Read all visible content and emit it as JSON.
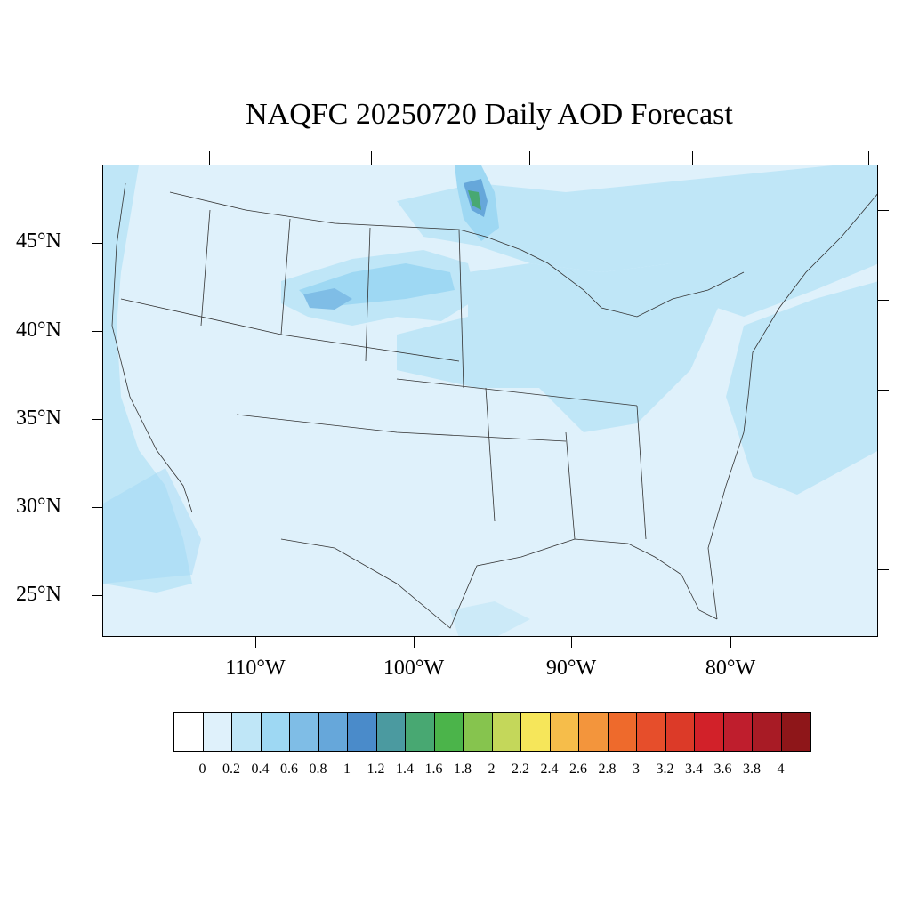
{
  "title": "NAQFC 20250720 Daily AOD Forecast",
  "map": {
    "projection": "Lambert conformal (CONUS)",
    "variable": "Aerosol optical depth",
    "background_level_color": "#dff1fb",
    "lat_labels": [
      "45°N",
      "40°N",
      "35°N",
      "30°N",
      "25°N"
    ],
    "lon_labels": [
      "110°W",
      "100°W",
      "90°W",
      "80°W"
    ]
  },
  "colorbar": {
    "colors": [
      "#ffffff",
      "#dff1fb",
      "#bfe6f7",
      "#9ed8f3",
      "#7fbde6",
      "#66a7da",
      "#4a8bca",
      "#4b9aa0",
      "#48a872",
      "#4bb44a",
      "#86c44e",
      "#c4d75a",
      "#f6e65a",
      "#f6bd4a",
      "#f3953c",
      "#ee6a2c",
      "#e64e2b",
      "#dc3a28",
      "#d22129",
      "#bf1e2d",
      "#a81b25",
      "#8e1619"
    ],
    "labels": [
      "0",
      "0.2",
      "0.4",
      "0.6",
      "0.8",
      "1",
      "1.2",
      "1.4",
      "1.6",
      "1.8",
      "2",
      "2.2",
      "2.4",
      "2.6",
      "2.8",
      "3",
      "3.2",
      "3.4",
      "3.6",
      "3.8",
      "4"
    ]
  }
}
